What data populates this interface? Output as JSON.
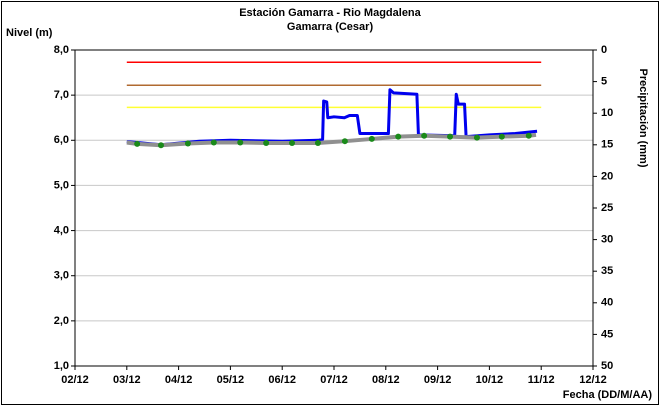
{
  "chart_data": {
    "type": "line",
    "title": "Estación Gamarra - Rio Magdalena",
    "subtitle": "Gamarra (Cesar)",
    "y_label": "Nivel (m)",
    "y2_label": "Precipitación (mm)",
    "x_label": "Fecha (DD/M/AA)",
    "xlim": [
      0,
      10
    ],
    "xticks": [
      {
        "value": 0,
        "label": "02/12"
      },
      {
        "value": 1,
        "label": "03/12"
      },
      {
        "value": 2,
        "label": "04/12"
      },
      {
        "value": 3,
        "label": "05/12"
      },
      {
        "value": 4,
        "label": "06/12"
      },
      {
        "value": 5,
        "label": "07/12"
      },
      {
        "value": 6,
        "label": "08/12"
      },
      {
        "value": 7,
        "label": "09/12"
      },
      {
        "value": 8,
        "label": "10/12"
      },
      {
        "value": 9,
        "label": "11/12"
      },
      {
        "value": 10,
        "label": "12/12"
      }
    ],
    "ylim": [
      1,
      8
    ],
    "yticks": [
      {
        "value": 1,
        "label": "1,0"
      },
      {
        "value": 2,
        "label": "2,0"
      },
      {
        "value": 3,
        "label": "3,0"
      },
      {
        "value": 4,
        "label": "4,0"
      },
      {
        "value": 5,
        "label": "5,0"
      },
      {
        "value": 6,
        "label": "6,0"
      },
      {
        "value": 7,
        "label": "7,0"
      },
      {
        "value": 8,
        "label": "8,0"
      }
    ],
    "y2lim": [
      0,
      50
    ],
    "y2_inverted": true,
    "y2ticks": [
      0,
      5,
      10,
      15,
      20,
      25,
      30,
      35,
      40,
      45,
      50
    ],
    "grid": true,
    "series": [
      {
        "color": "#ff0000",
        "style": "line",
        "width": 1.5,
        "x": [
          1,
          9
        ],
        "values": [
          7.73,
          7.73
        ]
      },
      {
        "color": "#b06a30",
        "style": "line",
        "width": 1.5,
        "x": [
          1,
          9
        ],
        "values": [
          7.22,
          7.22
        ]
      },
      {
        "color": "#ffff33",
        "style": "line",
        "width": 1.5,
        "x": [
          1,
          9
        ],
        "values": [
          6.73,
          6.73
        ]
      },
      {
        "color": "#0000ee",
        "style": "line",
        "width": 3,
        "x": [
          1.0,
          1.2,
          1.66,
          2.4,
          3.0,
          4.0,
          4.7,
          4.78,
          4.8,
          4.86,
          4.88,
          5.0,
          5.2,
          5.3,
          5.45,
          5.5,
          6.05,
          6.08,
          6.15,
          6.6,
          6.63,
          7.33,
          7.36,
          7.4,
          7.52,
          7.55,
          8.0,
          8.5,
          8.92
        ],
        "values": [
          5.97,
          5.95,
          5.9,
          5.98,
          6.0,
          5.98,
          6.0,
          6.02,
          6.87,
          6.85,
          6.5,
          6.52,
          6.5,
          6.55,
          6.55,
          6.15,
          6.15,
          7.12,
          7.05,
          7.02,
          6.12,
          6.1,
          7.02,
          6.8,
          6.8,
          6.08,
          6.12,
          6.15,
          6.2
        ]
      },
      {
        "color": "#909090",
        "style": "line",
        "width": 4,
        "x": [
          1.0,
          1.2,
          1.66,
          2.18,
          2.68,
          3.19,
          3.69,
          4.19,
          4.69,
          5.21,
          5.73,
          6.24,
          6.74,
          7.24,
          7.76,
          8.24,
          8.76,
          8.9
        ],
        "values": [
          5.95,
          5.92,
          5.89,
          5.93,
          5.95,
          5.95,
          5.94,
          5.94,
          5.94,
          5.98,
          6.03,
          6.08,
          6.1,
          6.08,
          6.06,
          6.08,
          6.1,
          6.12
        ]
      },
      {
        "color": "#1a8a1a",
        "style": "markers",
        "width": 0,
        "x": [
          1.2,
          1.66,
          2.18,
          2.68,
          3.19,
          3.69,
          4.19,
          4.69,
          5.21,
          5.73,
          6.24,
          6.74,
          7.24,
          7.76,
          8.24,
          8.76
        ],
        "values": [
          5.92,
          5.89,
          5.93,
          5.95,
          5.95,
          5.94,
          5.94,
          5.94,
          5.98,
          6.03,
          6.08,
          6.1,
          6.08,
          6.06,
          6.08,
          6.1
        ]
      }
    ]
  }
}
